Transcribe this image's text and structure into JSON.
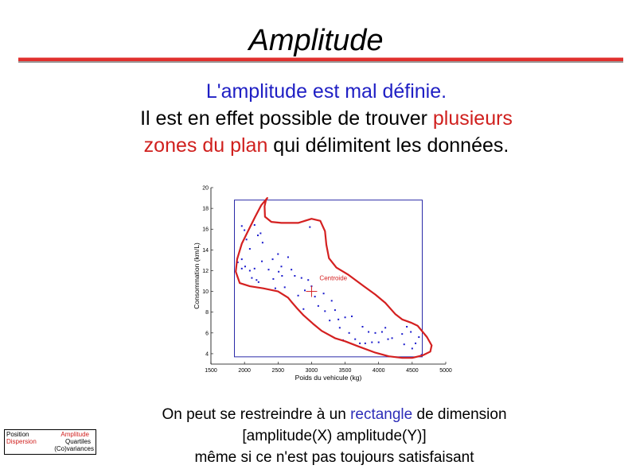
{
  "slide": {
    "title": "Amplitude",
    "intro": {
      "line1": "L'amplitude est mal définie.",
      "line2_pre": "Il est en effet possible de trouver ",
      "line2_red": "plusieurs",
      "line3_red": "zones du plan",
      "line3_post": " qui délimitent les données."
    },
    "bottom": {
      "line1_pre": "On peut se restreindre à un ",
      "line1_blue": "rectangle",
      "line1_post": " de dimension",
      "line2": "[amplitude(X) amplitude(Y)]",
      "line3": "même si ce n'est pas toujours satisfaisant"
    }
  },
  "nav": {
    "position": "Position",
    "dispersion": "Dispersion",
    "amplitude": "Amplitude",
    "quartiles": "Quartiles",
    "covariances": "(Co)variances"
  },
  "colors": {
    "points": "#1a1acc",
    "rectangle": "#2a2aa8",
    "region": "#d42020",
    "centroid": "#d42020"
  },
  "chart_data": {
    "type": "scatter",
    "xlabel": "Poids du vehicule (kg)",
    "ylabel": "Consommation (km/L)",
    "xlim": [
      1500,
      5000
    ],
    "ylim": [
      3,
      20
    ],
    "xticks": [
      "1500",
      "2000",
      "2500",
      "3000",
      "3500",
      "4000",
      "4500",
      "5000"
    ],
    "yticks": [
      "4",
      "6",
      "8",
      "10",
      "12",
      "14",
      "16",
      "18",
      "20"
    ],
    "centroid": {
      "label": "Centroide",
      "x": 3000,
      "y": 10.0
    },
    "bounding_rectangle": {
      "x": [
        1850,
        4650
      ],
      "y": [
        3.7,
        18.8
      ]
    },
    "points": [
      [
        1960,
        16.3
      ],
      [
        2000,
        15.9
      ],
      [
        2030,
        15.0
      ],
      [
        2080,
        14.1
      ],
      [
        2150,
        16.4
      ],
      [
        2200,
        15.4
      ],
      [
        2240,
        15.6
      ],
      [
        2270,
        14.7
      ],
      [
        1900,
        12.8
      ],
      [
        1960,
        13.1
      ],
      [
        1960,
        12.2
      ],
      [
        2010,
        12.4
      ],
      [
        2080,
        12.0
      ],
      [
        2110,
        11.3
      ],
      [
        2150,
        12.2
      ],
      [
        2180,
        11.1
      ],
      [
        2210,
        10.9
      ],
      [
        2260,
        12.9
      ],
      [
        2360,
        12.1
      ],
      [
        2420,
        13.1
      ],
      [
        2430,
        11.2
      ],
      [
        2460,
        10.3
      ],
      [
        2500,
        13.6
      ],
      [
        2510,
        11.9
      ],
      [
        2550,
        12.4
      ],
      [
        2560,
        11.5
      ],
      [
        2600,
        10.4
      ],
      [
        2650,
        13.3
      ],
      [
        2700,
        12.1
      ],
      [
        2750,
        11.5
      ],
      [
        2800,
        9.6
      ],
      [
        2850,
        11.3
      ],
      [
        2880,
        8.3
      ],
      [
        2900,
        10.1
      ],
      [
        2950,
        11.1
      ],
      [
        2975,
        16.2
      ],
      [
        3000,
        10.5
      ],
      [
        3050,
        9.5
      ],
      [
        3100,
        8.6
      ],
      [
        3180,
        9.8
      ],
      [
        3200,
        8.1
      ],
      [
        3270,
        7.2
      ],
      [
        3300,
        9.1
      ],
      [
        3350,
        8.2
      ],
      [
        3400,
        7.3
      ],
      [
        3420,
        6.5
      ],
      [
        3470,
        5.3
      ],
      [
        3500,
        7.5
      ],
      [
        3560,
        6.0
      ],
      [
        3600,
        7.6
      ],
      [
        3650,
        5.4
      ],
      [
        3720,
        5.0
      ],
      [
        3760,
        6.6
      ],
      [
        3800,
        5.0
      ],
      [
        3850,
        6.1
      ],
      [
        3900,
        5.1
      ],
      [
        3950,
        6.0
      ],
      [
        4000,
        5.1
      ],
      [
        4050,
        6.1
      ],
      [
        4100,
        6.5
      ],
      [
        4140,
        5.4
      ],
      [
        4200,
        5.5
      ],
      [
        4350,
        5.9
      ],
      [
        4380,
        4.9
      ],
      [
        4420,
        6.6
      ],
      [
        4480,
        6.1
      ],
      [
        4500,
        4.5
      ],
      [
        4550,
        5.0
      ],
      [
        4600,
        5.6
      ],
      [
        4640,
        3.9
      ]
    ],
    "region_outline": [
      [
        2340,
        19.0
      ],
      [
        2320,
        18.8
      ],
      [
        2300,
        18.2
      ],
      [
        2305,
        17.2
      ],
      [
        2400,
        16.7
      ],
      [
        2550,
        16.6
      ],
      [
        2800,
        16.6
      ],
      [
        3000,
        17.0
      ],
      [
        3130,
        16.8
      ],
      [
        3200,
        15.8
      ],
      [
        3220,
        14.5
      ],
      [
        3260,
        13.2
      ],
      [
        3370,
        12.3
      ],
      [
        3550,
        11.6
      ],
      [
        3780,
        10.5
      ],
      [
        3950,
        9.7
      ],
      [
        4100,
        8.9
      ],
      [
        4250,
        7.8
      ],
      [
        4350,
        7.3
      ],
      [
        4480,
        7.0
      ],
      [
        4580,
        6.7
      ],
      [
        4720,
        5.6
      ],
      [
        4790,
        4.8
      ],
      [
        4770,
        4.2
      ],
      [
        4660,
        3.85
      ],
      [
        4500,
        3.6
      ],
      [
        4350,
        3.6
      ],
      [
        4150,
        3.75
      ],
      [
        3950,
        4.1
      ],
      [
        3700,
        4.7
      ],
      [
        3500,
        5.2
      ],
      [
        3350,
        5.5
      ],
      [
        3150,
        6.2
      ],
      [
        3020,
        6.9
      ],
      [
        2880,
        7.7
      ],
      [
        2780,
        8.4
      ],
      [
        2700,
        9.0
      ],
      [
        2650,
        9.4
      ],
      [
        2500,
        10.0
      ],
      [
        2280,
        10.3
      ],
      [
        2080,
        10.5
      ],
      [
        1930,
        10.8
      ],
      [
        1870,
        11.9
      ],
      [
        1890,
        13.1
      ],
      [
        1960,
        14.6
      ],
      [
        2060,
        15.9
      ],
      [
        2160,
        17.2
      ],
      [
        2250,
        18.3
      ],
      [
        2340,
        19.0
      ]
    ]
  }
}
